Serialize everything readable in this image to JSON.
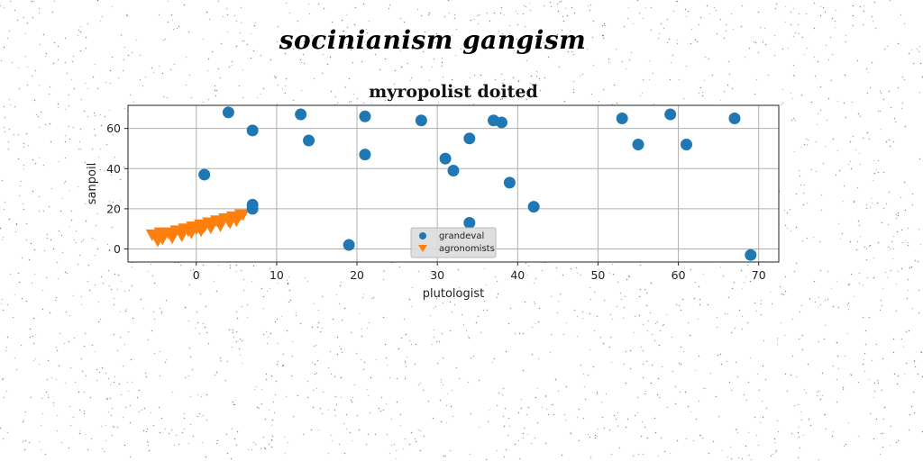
{
  "header": {
    "suptitle": "socinianism gangism"
  },
  "chart_data": {
    "type": "scatter",
    "title": "myropolist doited",
    "xlabel": "plutologist",
    "ylabel": "sanpoil",
    "xlim": [
      -8.5,
      72.5
    ],
    "ylim": [
      -6.5,
      71.5
    ],
    "xticks": [
      0,
      10,
      20,
      30,
      40,
      50,
      60,
      70
    ],
    "yticks": [
      0,
      20,
      40,
      60
    ],
    "grid": true,
    "legend": "bottom-center",
    "series": [
      {
        "name": "grandeval",
        "marker": "circle",
        "color": "#1f77b4",
        "points": [
          [
            1,
            37
          ],
          [
            4,
            68
          ],
          [
            7,
            59
          ],
          [
            7,
            22
          ],
          [
            7,
            20
          ],
          [
            13,
            67
          ],
          [
            14,
            54
          ],
          [
            19,
            2
          ],
          [
            21,
            66
          ],
          [
            21,
            47
          ],
          [
            28,
            64
          ],
          [
            31,
            45
          ],
          [
            32,
            39
          ],
          [
            34,
            55
          ],
          [
            34,
            13
          ],
          [
            37,
            64
          ],
          [
            38,
            63
          ],
          [
            39,
            33
          ],
          [
            42,
            21
          ],
          [
            53,
            65
          ],
          [
            55,
            52
          ],
          [
            59,
            67
          ],
          [
            61,
            52
          ],
          [
            67,
            65
          ],
          [
            69,
            -3
          ]
        ]
      },
      {
        "name": "agronomists",
        "marker": "triangle-down",
        "color": "#ff7f0e",
        "points": [
          [
            -5.5,
            7
          ],
          [
            -5,
            6
          ],
          [
            -4.5,
            8
          ],
          [
            -4,
            7
          ],
          [
            -3.5,
            8
          ],
          [
            -3,
            7
          ],
          [
            -2.5,
            9
          ],
          [
            -2,
            8
          ],
          [
            -1.5,
            10
          ],
          [
            -1,
            9
          ],
          [
            -0.5,
            11
          ],
          [
            0,
            10
          ],
          [
            0.5,
            12
          ],
          [
            1,
            11
          ],
          [
            1.5,
            13
          ],
          [
            2,
            12
          ],
          [
            2.5,
            14
          ],
          [
            3,
            13
          ],
          [
            3.5,
            15
          ],
          [
            4,
            14
          ],
          [
            4.5,
            16
          ],
          [
            5,
            15
          ],
          [
            5.5,
            17
          ],
          [
            5.8,
            17
          ],
          [
            -4.8,
            4
          ],
          [
            -4.2,
            5
          ],
          [
            -3,
            5.5
          ],
          [
            -1.8,
            6.5
          ],
          [
            -0.6,
            8
          ],
          [
            0.6,
            9
          ],
          [
            1.8,
            10.5
          ],
          [
            3,
            11.5
          ],
          [
            4.2,
            13
          ],
          [
            5,
            14
          ]
        ]
      }
    ]
  }
}
